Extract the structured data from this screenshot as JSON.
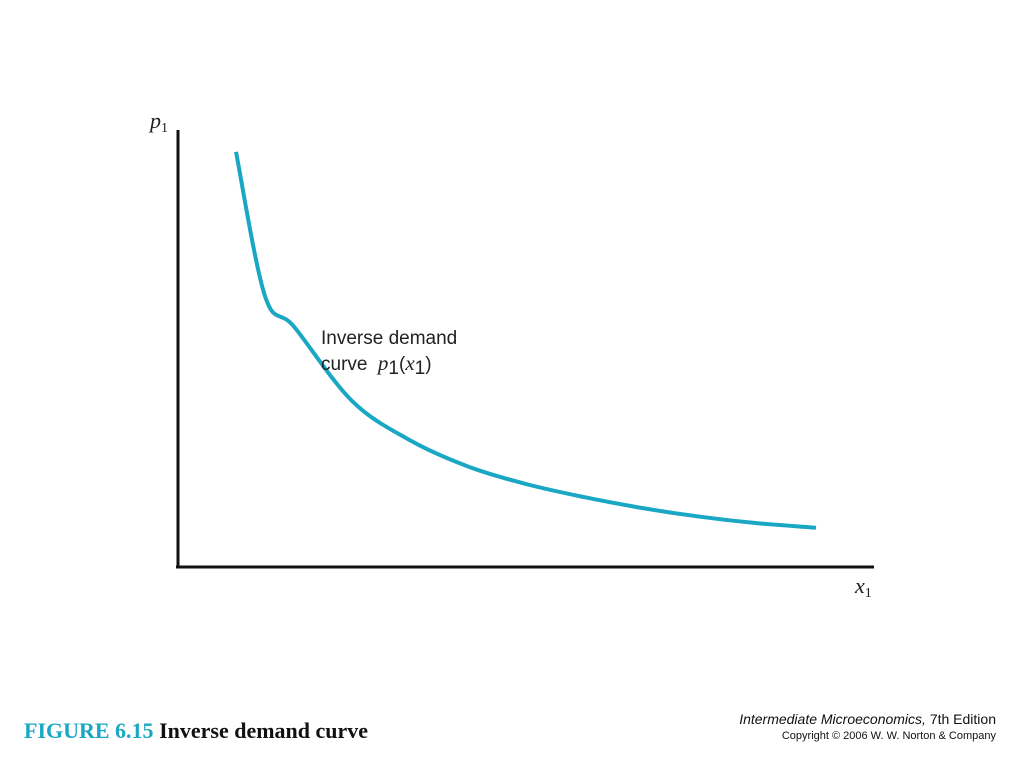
{
  "chart_data": {
    "type": "line",
    "title": "",
    "xlabel": {
      "base": "x",
      "sub": "1"
    },
    "ylabel": {
      "base": "p",
      "sub": "1"
    },
    "series": [
      {
        "name": "",
        "color": "#1aa7c4",
        "note": "downward-sloping convex curve (y ≈ k/x shape), no numeric ticks shown",
        "x": [
          1.0,
          1.5,
          2,
          3,
          4,
          5,
          6,
          7,
          8,
          9,
          10,
          11
        ],
        "y": [
          9.5,
          6.2,
          5.5,
          3.8,
          2.9,
          2.3,
          1.9,
          1.6,
          1.35,
          1.15,
          1.0,
          0.9
        ]
      }
    ],
    "xlim": [
      0,
      12
    ],
    "ylim": [
      0,
      10
    ],
    "grid": false,
    "annotation": {
      "line1": "Inverse demand",
      "line2_prefix": "curve",
      "func": {
        "base": "p",
        "sub": "1",
        "open": "(",
        "arg_base": "x",
        "arg_sub": "1",
        "close": ")"
      }
    }
  },
  "caption": {
    "number": "FIGURE 6.15",
    "title": "Inverse demand curve"
  },
  "credit": {
    "book_title": "Intermediate Microeconomics,",
    "edition": "7th Edition",
    "copyright": "Copyright © 2006 W. W. Norton & Company"
  }
}
